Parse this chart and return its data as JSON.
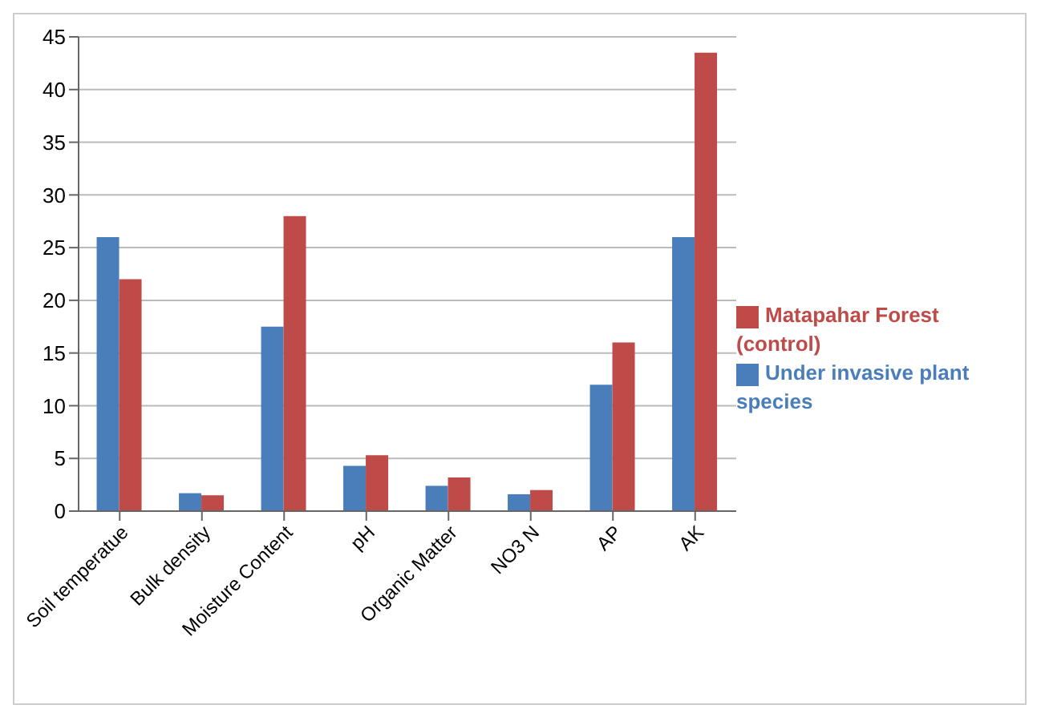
{
  "chart_data": {
    "type": "bar",
    "categories": [
      "Soil temperatue",
      "Bulk density",
      "Moisture Content",
      "pH",
      "Organic Matter",
      "NO3 N",
      "AP",
      "AK"
    ],
    "series": [
      {
        "name": "Under invasive plant species",
        "color": "#4a7ebb",
        "values": [
          26,
          1.7,
          17.5,
          4.3,
          2.4,
          1.6,
          12,
          26
        ]
      },
      {
        "name": "Matapahar Forest (control)",
        "color": "#be4b48",
        "values": [
          22,
          1.5,
          28,
          5.3,
          3.2,
          2,
          16,
          43.5
        ]
      }
    ],
    "ylim": [
      0,
      45
    ],
    "yticks": [
      0,
      5,
      10,
      15,
      20,
      25,
      30,
      35,
      40,
      45
    ],
    "grid": "y",
    "legend": "right"
  }
}
